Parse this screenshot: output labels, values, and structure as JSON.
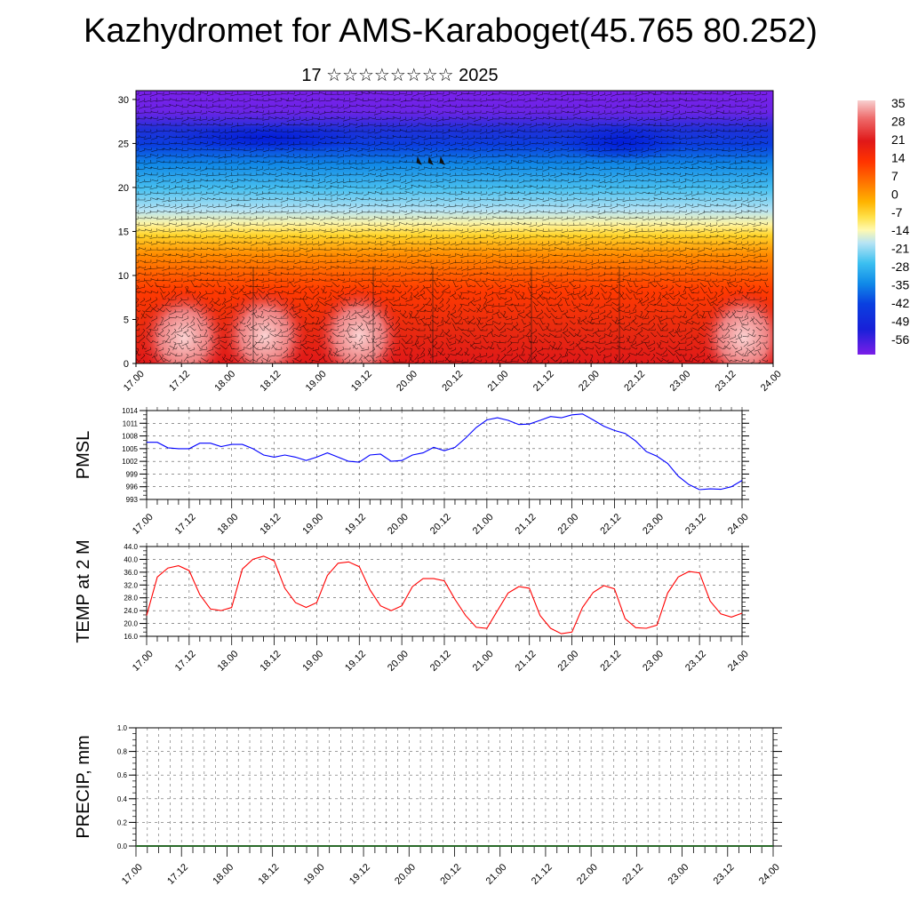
{
  "title": "Kazhydromet for AMS-Karaboget(45.765 80.252)",
  "subtitle": "17 ☆☆☆☆☆☆☆☆ 2025",
  "x_tick_labels": [
    "17.00",
    "17.12",
    "18.00",
    "18.12",
    "19.00",
    "19.12",
    "20.00",
    "20.12",
    "21.00",
    "21.12",
    "22.00",
    "22.12",
    "23.00",
    "23.12",
    "24.00"
  ],
  "chart_data": [
    {
      "type": "heatmap",
      "name": "cross-section",
      "y_ticks": [
        0,
        5,
        10,
        15,
        20,
        25,
        30
      ],
      "ylim": [
        0,
        31
      ],
      "colorbar": {
        "labels": [
          "35",
          "28",
          "21",
          "14",
          "7",
          "0",
          "-7",
          "-14",
          "-21",
          "-28",
          "-35",
          "-42",
          "-49",
          "-56"
        ],
        "colors": [
          "#f8c8c8",
          "#ee6b6b",
          "#e01818",
          "#ff3300",
          "#ff7a00",
          "#ffb400",
          "#ffe14a",
          "#fff9b0",
          "#b8e4f4",
          "#3cc0f0",
          "#108ae8",
          "#0a40e0",
          "#1820d8",
          "#7a1ee8"
        ]
      }
    },
    {
      "type": "line",
      "ylabel": "PMSL",
      "ylim": [
        993,
        1014
      ],
      "y_ticks": [
        993,
        996,
        999,
        1002,
        1005,
        1008,
        1011,
        1014
      ],
      "color": "#0000ff",
      "x": [
        0,
        3,
        6,
        9,
        12,
        15,
        18,
        21,
        24,
        27,
        30,
        33,
        36,
        39,
        42,
        45,
        48,
        51,
        54,
        57,
        60,
        63,
        66,
        69,
        72,
        75,
        78,
        81,
        84,
        87,
        90,
        93,
        96,
        99,
        102,
        105,
        108,
        111,
        114,
        117,
        120,
        123,
        126,
        129,
        132,
        135,
        138,
        141,
        144,
        147,
        150,
        153,
        156,
        159,
        162,
        165,
        168
      ],
      "values": [
        1006.5,
        1006.5,
        1005.2,
        1005,
        1005,
        1006.3,
        1006.3,
        1005.5,
        1006,
        1006,
        1005,
        1003.5,
        1003,
        1003.5,
        1003,
        1002.2,
        1003,
        1004,
        1003,
        1002,
        1001.8,
        1003.5,
        1003.7,
        1002,
        1002.2,
        1003.5,
        1004,
        1005.3,
        1004.5,
        1005.3,
        1007.5,
        1010,
        1011.8,
        1012.3,
        1011.7,
        1010.7,
        1010.8,
        1011.7,
        1012.6,
        1012.3,
        1013,
        1013.2,
        1011.8,
        1010.3,
        1009.3,
        1008.6,
        1006.8,
        1004.3,
        1003.2,
        1001.5,
        998.5,
        996.5,
        995.3,
        995.5,
        995.4,
        996,
        997.5
      ]
    },
    {
      "type": "line",
      "ylabel": "TEMP at 2 M",
      "ylim": [
        16,
        44
      ],
      "y_ticks": [
        "16.0",
        "20.0",
        "24.0",
        "28.0",
        "32.0",
        "36.0",
        "40.0",
        "44.0"
      ],
      "color": "#ff0000",
      "x": [
        0,
        3,
        6,
        9,
        12,
        15,
        18,
        21,
        24,
        27,
        30,
        33,
        36,
        39,
        42,
        45,
        48,
        51,
        54,
        57,
        60,
        63,
        66,
        69,
        72,
        75,
        78,
        81,
        84,
        87,
        90,
        93,
        96,
        99,
        102,
        105,
        108,
        111,
        114,
        117,
        120,
        123,
        126,
        129,
        132,
        135,
        138,
        141,
        144,
        147,
        150,
        153,
        156,
        159,
        162,
        165,
        168
      ],
      "values": [
        22.5,
        34.5,
        37.3,
        38,
        36.5,
        29,
        24.5,
        24,
        25,
        37,
        40,
        41,
        39.5,
        31,
        26.5,
        25,
        26.5,
        35,
        38.8,
        39.2,
        37.7,
        30.5,
        25.5,
        24,
        25.5,
        31.5,
        34,
        34,
        33.3,
        27.5,
        22.5,
        18.8,
        18.5,
        24,
        29.5,
        31.5,
        31,
        22.5,
        18.5,
        16.8,
        17.3,
        25,
        29.7,
        31.8,
        30.8,
        21.5,
        18.7,
        18.5,
        19.5,
        29.5,
        34.5,
        36.2,
        35.8,
        27,
        23,
        22,
        23.2
      ]
    },
    {
      "type": "bar",
      "ylabel": "PRECIP, mm",
      "ylim": [
        0,
        1
      ],
      "y_ticks": [
        "0.0",
        "0.2",
        "0.4",
        "0.6",
        "0.8",
        "1.0"
      ],
      "values": []
    }
  ]
}
